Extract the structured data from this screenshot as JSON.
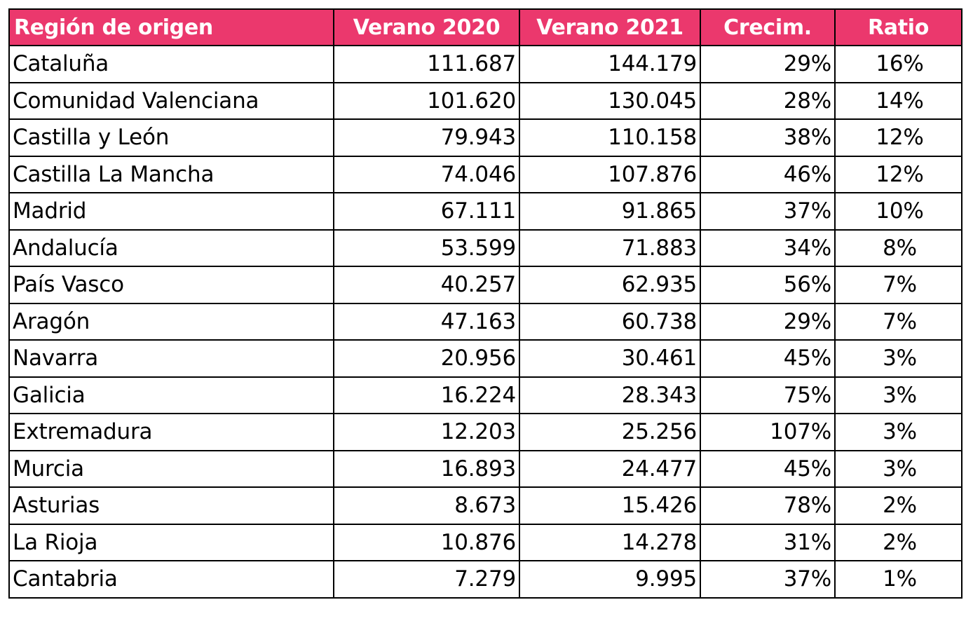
{
  "table": {
    "headers": [
      "Región de origen",
      "Verano 2020",
      "Verano 2021",
      "Crecim.",
      "Ratio"
    ],
    "rows": [
      [
        "Cataluña",
        "111.687",
        "144.179",
        "29%",
        "16%"
      ],
      [
        "Comunidad Valenciana",
        "101.620",
        "130.045",
        "28%",
        "14%"
      ],
      [
        "Castilla y León",
        "79.943",
        "110.158",
        "38%",
        "12%"
      ],
      [
        "Castilla La Mancha",
        "74.046",
        "107.876",
        "46%",
        "12%"
      ],
      [
        "Madrid",
        "67.111",
        "91.865",
        "37%",
        "10%"
      ],
      [
        "Andalucía",
        "53.599",
        "71.883",
        "34%",
        "8%"
      ],
      [
        "País Vasco",
        "40.257",
        "62.935",
        "56%",
        "7%"
      ],
      [
        "Aragón",
        "47.163",
        "60.738",
        "29%",
        "7%"
      ],
      [
        "Navarra",
        "20.956",
        "30.461",
        "45%",
        "3%"
      ],
      [
        "Galicia",
        "16.224",
        "28.343",
        "75%",
        "3%"
      ],
      [
        "Extremadura",
        "12.203",
        "25.256",
        "107%",
        "3%"
      ],
      [
        "Murcia",
        "16.893",
        "24.477",
        "45%",
        "3%"
      ],
      [
        "Asturias",
        "8.673",
        "15.426",
        "78%",
        "2%"
      ],
      [
        "La Rioja",
        "10.876",
        "14.278",
        "31%",
        "2%"
      ],
      [
        "Cantabria",
        "7.279",
        "9.995",
        "37%",
        "1%"
      ]
    ]
  },
  "colors": {
    "header_bg": "#eb386d",
    "header_text": "#ffffff",
    "border": "#000000"
  }
}
